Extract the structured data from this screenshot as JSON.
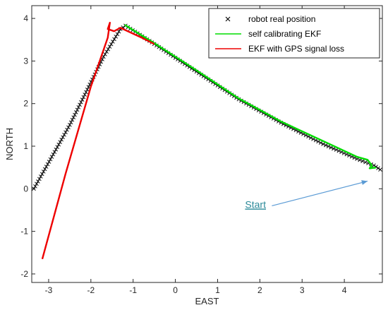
{
  "chart_data": {
    "type": "line",
    "title": "",
    "xlabel": "EAST",
    "ylabel": "NORTH",
    "xlim": [
      -3.4,
      4.9
    ],
    "ylim": [
      -2.2,
      4.3
    ],
    "grid": false,
    "legend_position": "top-right",
    "x_ticks": [
      -3,
      -2,
      -1,
      0,
      1,
      2,
      3,
      4
    ],
    "y_ticks": [
      -2,
      -1,
      0,
      1,
      2,
      3,
      4
    ],
    "series": [
      {
        "name": "robot real position",
        "marker": "x",
        "color": "#000000",
        "x": [
          -3.35,
          -2.5,
          -1.7,
          -1.3,
          -1.18,
          -0.5,
          0.5,
          1.5,
          2.5,
          3.5,
          4.3,
          4.7,
          4.85
        ],
        "y": [
          0.0,
          1.5,
          3.1,
          3.75,
          3.83,
          3.4,
          2.75,
          2.1,
          1.55,
          1.05,
          0.7,
          0.55,
          0.45
        ]
      },
      {
        "name": "self calibrating EKF",
        "marker": "",
        "color": "#00dd00",
        "x": [
          -1.2,
          -0.5,
          0.5,
          1.5,
          2.5,
          3.5,
          4.3,
          4.55,
          4.65,
          4.6,
          4.75
        ],
        "y": [
          3.85,
          3.42,
          2.78,
          2.12,
          1.58,
          1.12,
          0.75,
          0.68,
          0.55,
          0.48,
          0.5
        ]
      },
      {
        "name": "EKF with GPS signal loss",
        "marker": "",
        "color": "#ee0000",
        "x": [
          -3.15,
          -2.6,
          -2.0,
          -1.6,
          -1.55,
          -1.6,
          -1.45,
          -1.3,
          -0.8,
          -0.5
        ],
        "y": [
          -1.65,
          0.35,
          2.4,
          3.55,
          3.9,
          3.75,
          3.7,
          3.78,
          3.55,
          3.4
        ]
      }
    ],
    "annotation": {
      "text": "Start",
      "color": "#2e8b9a",
      "arrow_color": "#5b9bd5",
      "arrow_to": [
        4.55,
        0.18
      ]
    }
  }
}
